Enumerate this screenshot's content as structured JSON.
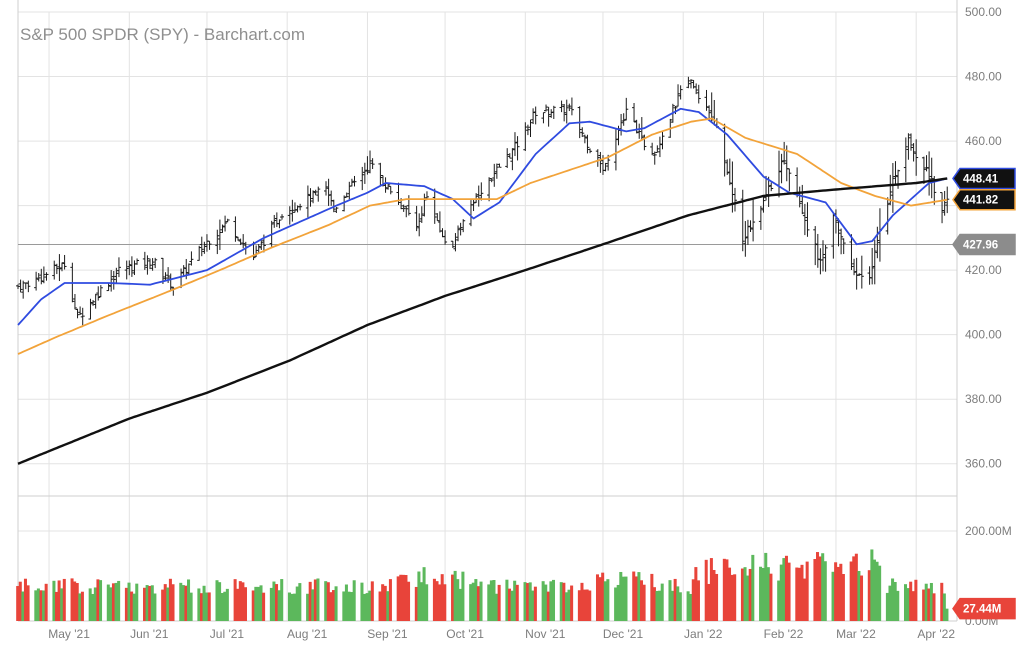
{
  "title": "S&P 500 SPDR (SPY) - Barchart.com",
  "colors": {
    "bar": "#1a1a1a",
    "sma20": "#2f4be0",
    "sma50": "#f2a33a",
    "sma200": "#111111",
    "vol_up": "#5cb85c",
    "vol_down": "#e8443a",
    "grid": "#e3e3e3",
    "ref_line": "#9a9a9a",
    "badge_gray": "#8c8c8c",
    "badge_red": "#e8443a"
  },
  "chart_data": [
    {
      "type": "line",
      "subtype": "ohlc-bars-with-moving-averages",
      "name": "price",
      "ylim": [
        350,
        500
      ],
      "yticks": [
        360,
        380,
        400,
        420,
        440,
        460,
        480,
        500
      ],
      "ytick_labels": [
        "360.00",
        "380.00",
        "400.00",
        "420.00",
        "440.00",
        "460.00",
        "480.00",
        "500.00"
      ],
      "x_month_labels": [
        "May '21",
        "Jun '21",
        "Jul '21",
        "Aug '21",
        "Sep '21",
        "Oct '21",
        "Nov '21",
        "Dec '21",
        "Jan '22",
        "Feb '22",
        "Mar '22",
        "Apr '22"
      ],
      "grid": true,
      "reference_line": 427.96,
      "anchors": [
        [
          "2021-04-19",
          415.0
        ],
        [
          "2021-04-26",
          417.0
        ],
        [
          "2021-05-07",
          422.0
        ],
        [
          "2021-05-12",
          405.0
        ],
        [
          "2021-05-20",
          413.0
        ],
        [
          "2021-05-28",
          420.0
        ],
        [
          "2021-06-10",
          423.0
        ],
        [
          "2021-06-18",
          415.0
        ],
        [
          "2021-06-30",
          428.0
        ],
        [
          "2021-07-09",
          435.0
        ],
        [
          "2021-07-19",
          424.0
        ],
        [
          "2021-07-30",
          438.0
        ],
        [
          "2021-08-16",
          445.0
        ],
        [
          "2021-08-19",
          439.0
        ],
        [
          "2021-08-31",
          451.0
        ],
        [
          "2021-09-02",
          453.0
        ],
        [
          "2021-09-20",
          434.0
        ],
        [
          "2021-09-24",
          443.0
        ],
        [
          "2021-09-30",
          430.0
        ],
        [
          "2021-10-04",
          428.0
        ],
        [
          "2021-10-15",
          445.0
        ],
        [
          "2021-10-29",
          459.0
        ],
        [
          "2021-11-05",
          469.0
        ],
        [
          "2021-11-18",
          470.0
        ],
        [
          "2021-11-26",
          458.0
        ],
        [
          "2021-12-01",
          451.0
        ],
        [
          "2021-12-10",
          470.0
        ],
        [
          "2021-12-20",
          455.0
        ],
        [
          "2021-12-31",
          475.0
        ],
        [
          "2022-01-04",
          478.0
        ],
        [
          "2022-01-14",
          464.0
        ],
        [
          "2022-01-24",
          430.0
        ],
        [
          "2022-01-27",
          433.0
        ],
        [
          "2022-02-09",
          455.0
        ],
        [
          "2022-02-23",
          422.0
        ],
        [
          "2022-02-28",
          436.0
        ],
        [
          "2022-03-08",
          419.0
        ],
        [
          "2022-03-14",
          418.0
        ],
        [
          "2022-03-22",
          445.0
        ],
        [
          "2022-03-29",
          460.0
        ],
        [
          "2022-04-05",
          451.0
        ],
        [
          "2022-04-11",
          439.0
        ],
        [
          "2022-04-13",
          441.82
        ]
      ],
      "series": [
        {
          "name": "SMA 20",
          "last": 448.41,
          "label": "448.41",
          "anchors": [
            [
              "2021-04-19",
              403.0
            ],
            [
              "2021-04-28",
              411.0
            ],
            [
              "2021-05-07",
              416.0
            ],
            [
              "2021-05-24",
              416.0
            ],
            [
              "2021-06-09",
              415.5
            ],
            [
              "2021-07-01",
              420.0
            ],
            [
              "2021-07-23",
              430.0
            ],
            [
              "2021-08-20",
              440.0
            ],
            [
              "2021-09-01",
              444.0
            ],
            [
              "2021-09-08",
              447.0
            ],
            [
              "2021-09-23",
              446.0
            ],
            [
              "2021-10-04",
              442.0
            ],
            [
              "2021-10-12",
              436.0
            ],
            [
              "2021-10-22",
              441.0
            ],
            [
              "2021-11-05",
              456.0
            ],
            [
              "2021-11-18",
              465.5
            ],
            [
              "2021-11-26",
              466.0
            ],
            [
              "2021-12-10",
              463.0
            ],
            [
              "2021-12-17",
              464.0
            ],
            [
              "2021-12-31",
              470.0
            ],
            [
              "2022-01-07",
              469.0
            ],
            [
              "2022-01-18",
              462.0
            ],
            [
              "2022-02-01",
              449.0
            ],
            [
              "2022-02-11",
              444.0
            ],
            [
              "2022-02-25",
              441.0
            ],
            [
              "2022-03-09",
              428.0
            ],
            [
              "2022-03-15",
              429.0
            ],
            [
              "2022-03-23",
              437.0
            ],
            [
              "2022-04-06",
              447.0
            ],
            [
              "2022-04-13",
              448.41
            ]
          ]
        },
        {
          "name": "SMA 50",
          "last": 441.82,
          "label": "441.82",
          "anchors": [
            [
              "2021-04-19",
              394.0
            ],
            [
              "2021-05-03",
              399.0
            ],
            [
              "2021-05-24",
              406.0
            ],
            [
              "2021-06-15",
              413.0
            ],
            [
              "2021-07-06",
              420.0
            ],
            [
              "2021-07-26",
              427.0
            ],
            [
              "2021-08-17",
              434.0
            ],
            [
              "2021-09-02",
              440.0
            ],
            [
              "2021-09-16",
              442.0
            ],
            [
              "2021-10-06",
              442.0
            ],
            [
              "2021-10-21",
              442.0
            ],
            [
              "2021-11-03",
              447.0
            ],
            [
              "2021-11-18",
              451.0
            ],
            [
              "2021-12-03",
              455.0
            ],
            [
              "2021-12-20",
              462.0
            ],
            [
              "2022-01-04",
              466.0
            ],
            [
              "2022-01-12",
              467.0
            ],
            [
              "2022-01-25",
              461.0
            ],
            [
              "2022-02-14",
              456.0
            ],
            [
              "2022-03-03",
              447.0
            ],
            [
              "2022-03-16",
              443.0
            ],
            [
              "2022-03-30",
              440.0
            ],
            [
              "2022-04-13",
              441.82
            ]
          ]
        },
        {
          "name": "SMA 200",
          "last": 448.41,
          "label": "448.41",
          "anchors": [
            [
              "2021-04-19",
              360.0
            ],
            [
              "2021-06-01",
              374.0
            ],
            [
              "2021-07-01",
              382.0
            ],
            [
              "2021-08-02",
              392.0
            ],
            [
              "2021-09-01",
              403.0
            ],
            [
              "2021-10-01",
              412.0
            ],
            [
              "2021-11-01",
              420.0
            ],
            [
              "2021-12-01",
              428.0
            ],
            [
              "2022-01-03",
              437.0
            ],
            [
              "2022-02-01",
              443.0
            ],
            [
              "2022-03-01",
              445.0
            ],
            [
              "2022-04-01",
              447.0
            ],
            [
              "2022-04-13",
              448.41
            ]
          ]
        }
      ],
      "reference_label": "427.96"
    },
    {
      "type": "bar",
      "name": "volume",
      "ylim": [
        0,
        260
      ],
      "yticks": [
        0,
        200
      ],
      "ytick_labels": [
        "0.00M",
        "200.00M"
      ],
      "last": 27.44,
      "last_label": "27.44M"
    }
  ]
}
